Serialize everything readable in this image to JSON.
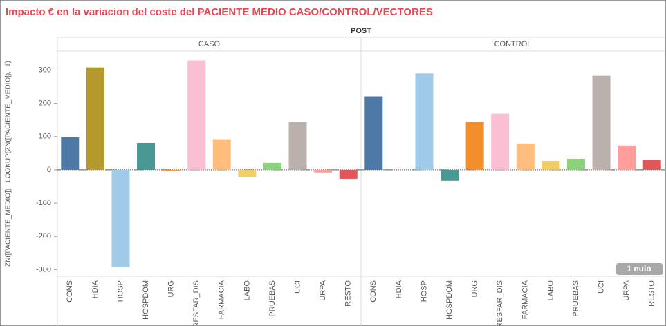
{
  "chart_data": {
    "type": "bar",
    "title": "Impacto € en la variacion del coste del PACIENTE MEDIO CASO/CONTROL/VECTORES",
    "column_header": "POST",
    "ylabel": "ZN([PACIENTE_MEDIO]) - LOOKUP(ZN([PACIENTE_MEDIO]), -1)",
    "categories": [
      "CONS",
      "HDIA",
      "HOSP",
      "HOSPDOM",
      "URG",
      "PRESFAR_DIS",
      "FARMACIA",
      "LABO",
      "PRUEBAS",
      "UCI",
      "URPA",
      "RESTO"
    ],
    "colors": [
      "#4e79a7",
      "#b6992d",
      "#a0cbe8",
      "#499894",
      "#f28e2b",
      "#fabfd2",
      "#ffbe7d",
      "#f1ce63",
      "#8cd17d",
      "#bab0ac",
      "#ff9d9a",
      "#e15759"
    ],
    "series": [
      {
        "name": "CASO",
        "values": [
          98,
          308,
          -292,
          81,
          -2,
          329,
          92,
          -21,
          21,
          144,
          -8,
          -27
        ]
      },
      {
        "name": "CONTROL",
        "values": [
          221,
          null,
          290,
          -33,
          144,
          169,
          79,
          27,
          33,
          283,
          73,
          29
        ]
      }
    ],
    "ylim": [
      -320,
      355
    ],
    "yticks": [
      -300,
      -200,
      -100,
      0,
      100,
      200,
      300
    ],
    "grid": false,
    "null_note": "1 nulo"
  }
}
